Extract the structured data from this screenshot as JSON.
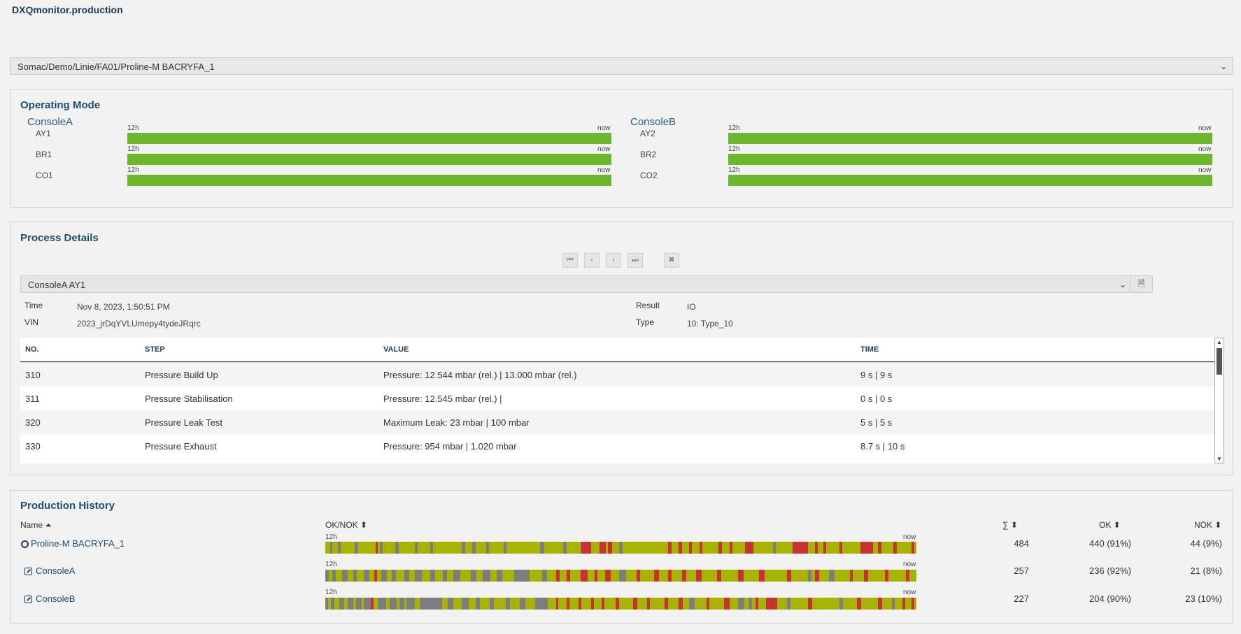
{
  "app": {
    "title": "DXQmonitor.production"
  },
  "path_select": {
    "value": "Somac/Demo/Linie/FA01/Proline-M BACRYFA_1"
  },
  "operating_mode": {
    "title": "Operating Mode",
    "consoles": [
      {
        "name": "ConsoleA",
        "rows": [
          {
            "label": "AY1",
            "start": "12h",
            "end": "now"
          },
          {
            "label": "BR1",
            "start": "12h",
            "end": "now"
          },
          {
            "label": "CO1",
            "start": "12h",
            "end": "now"
          }
        ]
      },
      {
        "name": "ConsoleB",
        "rows": [
          {
            "label": "AY2",
            "start": "12h",
            "end": "now"
          },
          {
            "label": "BR2",
            "start": "12h",
            "end": "now"
          },
          {
            "label": "CO2",
            "start": "12h",
            "end": "now"
          }
        ]
      }
    ],
    "bar_color": "#6db52d"
  },
  "process_details": {
    "title": "Process Details",
    "nav": {
      "first": "⏮",
      "prev": "‹",
      "next": "›",
      "last": "⏭",
      "close": "✖"
    },
    "run_select": "ConsoleA AY1",
    "meta": {
      "time_label": "Time",
      "time_value": "Nov 8, 2023, 1:50:51 PM",
      "vin_label": "VIN",
      "vin_value": "2023_jrDqYVLUmepy4tydeJRqrc",
      "result_label": "Result",
      "result_value": "IO",
      "type_label": "Type",
      "type_value": "10: Type_10"
    },
    "columns": {
      "no": "NO.",
      "step": "STEP",
      "value": "VALUE",
      "time": "TIME"
    },
    "rows": [
      {
        "no": "310",
        "step": "Pressure Build Up",
        "value": "Pressure: 12.544 mbar (rel.) | 13.000 mbar (rel.)",
        "time": "9 s | 9 s"
      },
      {
        "no": "311",
        "step": "Pressure Stabilisation",
        "value": "Pressure: 12.545 mbar (rel.) |",
        "time": "0 s | 0 s"
      },
      {
        "no": "320",
        "step": "Pressure Leak Test",
        "value": "Maximum Leak: 23 mbar | 100 mbar",
        "time": "5 s | 5 s"
      },
      {
        "no": "330",
        "step": "Pressure Exhaust",
        "value": "Pressure: 954 mbar | 1.020 mbar",
        "time": "8.7 s | 10 s"
      }
    ]
  },
  "production_history": {
    "title": "Production History",
    "headers": {
      "name": "Name ⏶",
      "oknok": "OK/NOK ⬍",
      "sum": "∑ ⬍",
      "ok": "OK ⬍",
      "nok": "NOK ⬍"
    },
    "colors": {
      "ok": "#a7b300",
      "nok": "#c83232",
      "idle": "#7d7d7d"
    },
    "rows": [
      {
        "name": "Proline-M BACRYFA_1",
        "icon": "circle-icon",
        "start": "12h",
        "end": "now",
        "sum": "484",
        "ok": "440 (91%)",
        "nok": "44 (9%)"
      },
      {
        "name": "ConsoleA",
        "icon": "external-link-icon",
        "start": "12h",
        "end": "now",
        "sum": "257",
        "ok": "236 (92%)",
        "nok": "21 (8%)"
      },
      {
        "name": "ConsoleB",
        "icon": "external-link-icon",
        "start": "12h",
        "end": "now",
        "sum": "227",
        "ok": "204 (90%)",
        "nok": "23 (10%)"
      }
    ]
  }
}
